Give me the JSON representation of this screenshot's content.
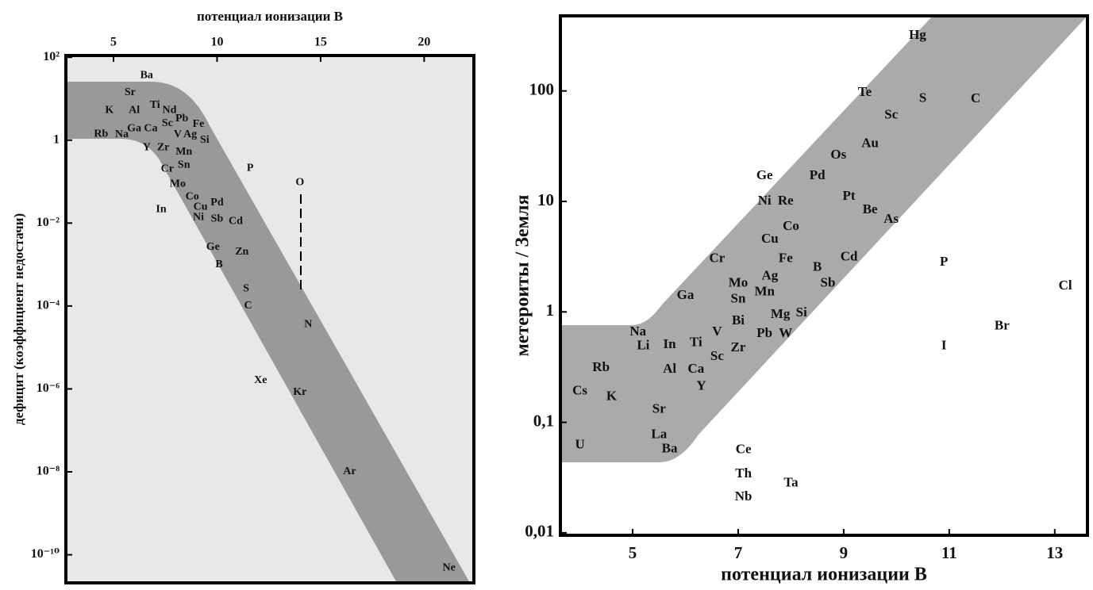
{
  "chart_data": [
    {
      "type": "scatter",
      "xlabel": "потенциал ионизации  В",
      "ylabel": "дефицит (коэффициент недостачи)",
      "xaxis_position": "top",
      "log_y": true,
      "xlim": [
        2.7,
        22.4
      ],
      "xticks": [
        5,
        10,
        15,
        20
      ],
      "ylim": [
        2.1e-11,
        110
      ],
      "yticks": [
        {
          "value": 100,
          "label": "10²"
        },
        1,
        {
          "value": 0.01,
          "label": "10⁻²"
        },
        {
          "value": 0.0001,
          "label": "10⁻⁴"
        },
        {
          "value": 1e-06,
          "label": "10⁻⁶"
        },
        {
          "value": 1e-08,
          "label": "10⁻⁸"
        },
        {
          "value": 1e-10,
          "label": "10⁻¹⁰"
        }
      ],
      "labels": [
        "Ba",
        "Sr",
        "K",
        "Al",
        "Ti",
        "Nd",
        "Pb",
        "Fe",
        "Sc",
        "Ca",
        "Ga",
        "Rb",
        "Na",
        "V",
        "Ag",
        "Si",
        "Y",
        "Zr",
        "Mn",
        "Sn",
        "Cr",
        "P",
        "O",
        "Mo",
        "Co",
        "Pd",
        "Cu",
        "In",
        "Ni",
        "Sb",
        "Cd",
        "Ge",
        "Zn",
        "B",
        "S",
        "C",
        "N",
        "Xe",
        "Kr",
        "Ar",
        "Ne"
      ],
      "x": [
        6.6,
        5.8,
        4.8,
        6.0,
        7.0,
        7.7,
        8.3,
        9.1,
        7.6,
        6.8,
        6.0,
        4.4,
        5.4,
        8.1,
        8.7,
        9.4,
        6.6,
        7.4,
        8.4,
        8.4,
        7.6,
        11.6,
        14.0,
        8.1,
        8.8,
        10.0,
        9.2,
        7.3,
        9.1,
        10.0,
        10.9,
        9.8,
        11.2,
        10.1,
        11.4,
        11.5,
        14.4,
        12.1,
        14.0,
        16.4,
        21.2
      ],
      "y": [
        36,
        14,
        5.2,
        5.2,
        6.9,
        5.2,
        3.3,
        2.4,
        2.5,
        1.9,
        1.9,
        1.4,
        1.35,
        1.35,
        1.35,
        1,
        0.65,
        0.65,
        0.52,
        0.25,
        0.2,
        0.21,
        0.094,
        0.086,
        0.043,
        0.031,
        0.024,
        0.021,
        0.0135,
        0.0125,
        0.011,
        0.0026,
        0.002,
        0.001,
        0.00026,
        0.0001,
        3.6e-05,
        1.6e-06,
        8.3e-07,
        1e-08,
        4.8e-11
      ]
    },
    {
      "type": "scatter",
      "xlabel": "потенциал ионизации  В",
      "ylabel": "метероиты / Земля",
      "xaxis_position": "bottom",
      "log_y": true,
      "xlim": [
        3.63,
        13.62
      ],
      "xticks": [
        5,
        7,
        9,
        11,
        13
      ],
      "ylim": [
        0.0095,
        478
      ],
      "yticks": [
        {
          "value": 0.01,
          "label": "0,01"
        },
        {
          "value": 0.1,
          "label": "0,1"
        },
        1,
        10,
        100
      ],
      "labels": [
        "Hg",
        "Te",
        "S",
        "C",
        "Sc",
        "Au",
        "Os",
        "Ge",
        "Pd",
        "Pt",
        "Ni",
        "Re",
        "Be",
        "As",
        "Co",
        "Cu",
        "Cr",
        "Fe",
        "Cd",
        "P",
        "B",
        "Ag",
        "Mo",
        "Sb",
        "Cl",
        "Mn",
        "Ga",
        "Sn",
        "Mg",
        "Si",
        "Bi",
        "Br",
        "Na",
        "V",
        "Pb",
        "W",
        "Li",
        "In",
        "Ti",
        "I",
        "Zr",
        "Sc",
        "Rb",
        "Al",
        "Ca",
        "Y",
        "Cs",
        "K",
        "Sr",
        "La",
        "U",
        "Ba",
        "Ce",
        "Th",
        "Ta",
        "Nb"
      ],
      "x": [
        10.4,
        9.4,
        10.5,
        11.5,
        9.9,
        9.5,
        8.9,
        7.5,
        8.5,
        9.1,
        7.5,
        7.9,
        9.5,
        9.9,
        8.0,
        7.6,
        6.6,
        7.9,
        9.1,
        10.9,
        8.5,
        7.6,
        7.0,
        8.7,
        13.2,
        7.5,
        6.0,
        7.0,
        7.8,
        8.2,
        7.0,
        12.0,
        5.1,
        6.6,
        7.5,
        7.9,
        5.2,
        5.7,
        6.2,
        10.9,
        7.0,
        6.6,
        4.4,
        5.7,
        6.2,
        6.3,
        4.0,
        4.6,
        5.5,
        5.5,
        4.0,
        5.7,
        7.1,
        7.1,
        8.0,
        7.1
      ],
      "y": [
        316,
        96,
        85,
        84,
        60,
        33,
        26,
        17,
        17,
        11,
        10,
        10,
        8.3,
        6.8,
        5.9,
        4.5,
        3.0,
        3.0,
        3.1,
        2.8,
        2.5,
        2.1,
        1.8,
        1.8,
        1.7,
        1.5,
        1.4,
        1.3,
        0.94,
        0.97,
        0.82,
        0.74,
        0.65,
        0.65,
        0.63,
        0.63,
        0.49,
        0.5,
        0.52,
        0.49,
        0.47,
        0.39,
        0.31,
        0.3,
        0.3,
        0.21,
        0.19,
        0.17,
        0.13,
        0.077,
        0.062,
        0.057,
        0.056,
        0.034,
        0.028,
        0.021
      ]
    }
  ]
}
